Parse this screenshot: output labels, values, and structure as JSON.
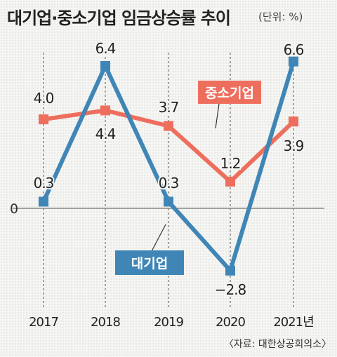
{
  "title": "대기업·중소기업 임금상승률 추이",
  "unit": "(단위: %)",
  "source": "〈자료: 대한상공회의소〉",
  "chart_data": {
    "type": "line",
    "title": "대기업·중소기업 임금상승률 추이",
    "unit": "(단위: %)",
    "x_tick_labels": [
      "2017",
      "2018",
      "2019",
      "2020",
      "2021년"
    ],
    "x": [
      2017,
      2018,
      2019,
      2020,
      2021
    ],
    "ylim": [
      -2.8,
      6.6
    ],
    "zero_label": "0",
    "grid": "vertical dashed lines at each year",
    "series": [
      {
        "name": "대기업",
        "color": "#3f86b6",
        "values": [
          0.3,
          6.4,
          0.3,
          -2.8,
          6.6
        ],
        "value_labels": [
          "0.3",
          "6.4",
          "0.3",
          "−2.8",
          "6.6"
        ]
      },
      {
        "name": "중소기업",
        "color": "#ee6e5d",
        "values": [
          4.0,
          4.4,
          3.7,
          1.2,
          3.9
        ],
        "value_labels": [
          "4.0",
          "4.4",
          "3.7",
          "1.2",
          "3.9"
        ]
      }
    ]
  }
}
